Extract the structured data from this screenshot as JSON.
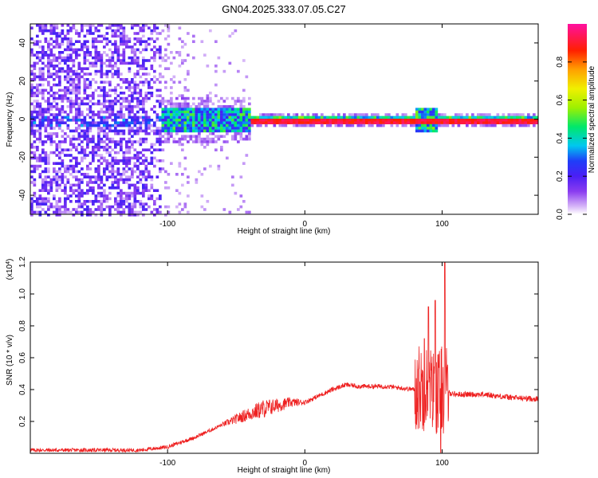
{
  "title": "GN04.2025.333.07.05.C27",
  "chart_data": [
    {
      "type": "heatmap",
      "name": "spectrogram",
      "xlabel": "Height of straight line (km)",
      "ylabel": "Frequency (Hz)",
      "xlim": [
        -200,
        170
      ],
      "ylim": [
        -50,
        50
      ],
      "xticks": [
        -100,
        0,
        100
      ],
      "yticks": [
        -40,
        -20,
        0,
        20,
        40
      ],
      "colorbar": {
        "label": "Normalized spectral amplitude",
        "range": [
          0,
          1
        ],
        "ticks": [
          0.0,
          0.2,
          0.4,
          0.6,
          0.8
        ],
        "colors": [
          "#ffffff",
          "#d8b8f8",
          "#8a3cf0",
          "#4b1ff5",
          "#1f3ef8",
          "#00c8f0",
          "#00e86a",
          "#9ef000",
          "#f0f000",
          "#ffa000",
          "#ff2000",
          "#ff10a0"
        ]
      },
      "regions": [
        {
          "x_from": -200,
          "x_to": -105,
          "description_level": "scattered noise",
          "amplitude_range": [
            0.05,
            0.2
          ]
        },
        {
          "x_from": -105,
          "x_to": -40,
          "band_halfwidth_hz": 5,
          "amplitude_range": [
            0.2,
            0.5
          ]
        },
        {
          "x_from": -40,
          "x_to": 170,
          "band_halfwidth_hz": 1.5,
          "amplitude_range": [
            0.8,
            1.0
          ]
        }
      ]
    },
    {
      "type": "line",
      "name": "snr",
      "xlabel": "Height of straight line (km)",
      "ylabel": "SNR (10 * v/v)",
      "multiplier_label": "(x10",
      "multiplier_exp": "4",
      "multiplier_close": ")",
      "xlim": [
        -200,
        170
      ],
      "ylim": [
        0,
        1.2
      ],
      "xticks": [
        -100,
        0,
        100
      ],
      "yticks": [
        0.2,
        0.4,
        0.6,
        0.8,
        1.0,
        1.2
      ],
      "color": "#ee2020",
      "envelope": {
        "x": [
          -200,
          -120,
          -100,
          -80,
          -60,
          -40,
          -30,
          -20,
          -10,
          0,
          10,
          20,
          30,
          40,
          50,
          60,
          70,
          80,
          85,
          90,
          95,
          100,
          105,
          110,
          130,
          150,
          170
        ],
        "y": [
          0.02,
          0.02,
          0.04,
          0.1,
          0.18,
          0.25,
          0.28,
          0.3,
          0.32,
          0.32,
          0.36,
          0.4,
          0.43,
          0.42,
          0.42,
          0.42,
          0.41,
          0.4,
          0.42,
          0.4,
          0.38,
          0.4,
          0.38,
          0.37,
          0.37,
          0.35,
          0.34
        ]
      },
      "peaks": [
        {
          "x": 90,
          "y": 0.92
        },
        {
          "x": 95,
          "y": 0.96
        },
        {
          "x": 99,
          "y": 0.0
        },
        {
          "x": 102,
          "y": 1.2
        },
        {
          "x": 87,
          "y": 0.72
        }
      ]
    }
  ]
}
